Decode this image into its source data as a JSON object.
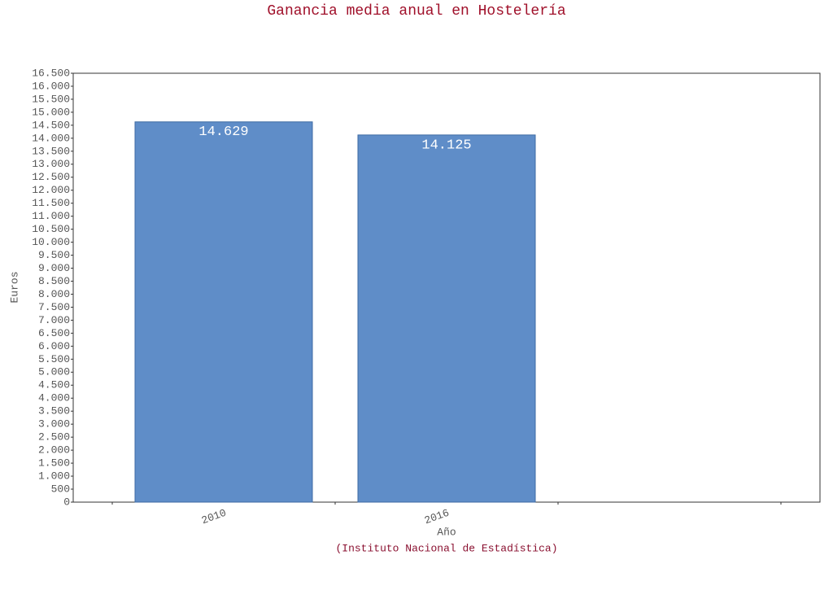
{
  "chart_data": {
    "type": "bar",
    "title": "Ganancia media anual en Hostelería",
    "x_label": "Año",
    "y_label": "Euros",
    "source": "(Instituto Nacional de Estadística)",
    "categories": [
      "2010",
      "2016"
    ],
    "values": [
      14629,
      14125
    ],
    "value_labels": [
      "14.629",
      "14.125"
    ],
    "color": "#5f8dc8",
    "ylim": [
      0,
      16500
    ],
    "yticks": [
      0,
      500,
      {
        "value": 1000,
        "label": "1.000"
      },
      {
        "value": 1500,
        "label": "1.500"
      },
      {
        "value": 2000,
        "label": "2.000"
      },
      {
        "value": 2500,
        "label": "2.500"
      },
      {
        "value": 3000,
        "label": "3.000"
      },
      {
        "value": 3500,
        "label": "3.500"
      },
      {
        "value": 4000,
        "label": "4.000"
      },
      {
        "value": 4500,
        "label": "4.500"
      },
      {
        "value": 5000,
        "label": "5.000"
      },
      {
        "value": 5500,
        "label": "5.500"
      },
      {
        "value": 6000,
        "label": "6.000"
      },
      {
        "value": 6500,
        "label": "6.500"
      },
      {
        "value": 7000,
        "label": "7.000"
      },
      {
        "value": 7500,
        "label": "7.500"
      },
      {
        "value": 8000,
        "label": "8.000"
      },
      {
        "value": 8500,
        "label": "8.500"
      },
      {
        "value": 9000,
        "label": "9.000"
      },
      {
        "value": 9500,
        "label": "9.500"
      },
      {
        "value": 10000,
        "label": "10.000"
      },
      {
        "value": 10500,
        "label": "10.500"
      },
      {
        "value": 11000,
        "label": "11.000"
      },
      {
        "value": 11500,
        "label": "11.500"
      },
      {
        "value": 12000,
        "label": "12.000"
      },
      {
        "value": 12500,
        "label": "12.500"
      },
      {
        "value": 13000,
        "label": "13.000"
      },
      {
        "value": 13500,
        "label": "13.500"
      },
      {
        "value": 14000,
        "label": "14.000"
      },
      {
        "value": 14500,
        "label": "14.500"
      },
      {
        "value": 15000,
        "label": "15.000"
      },
      {
        "value": 15500,
        "label": "15.500"
      },
      {
        "value": 16000,
        "label": "16.000"
      },
      {
        "value": 16500,
        "label": "16.500"
      }
    ]
  }
}
